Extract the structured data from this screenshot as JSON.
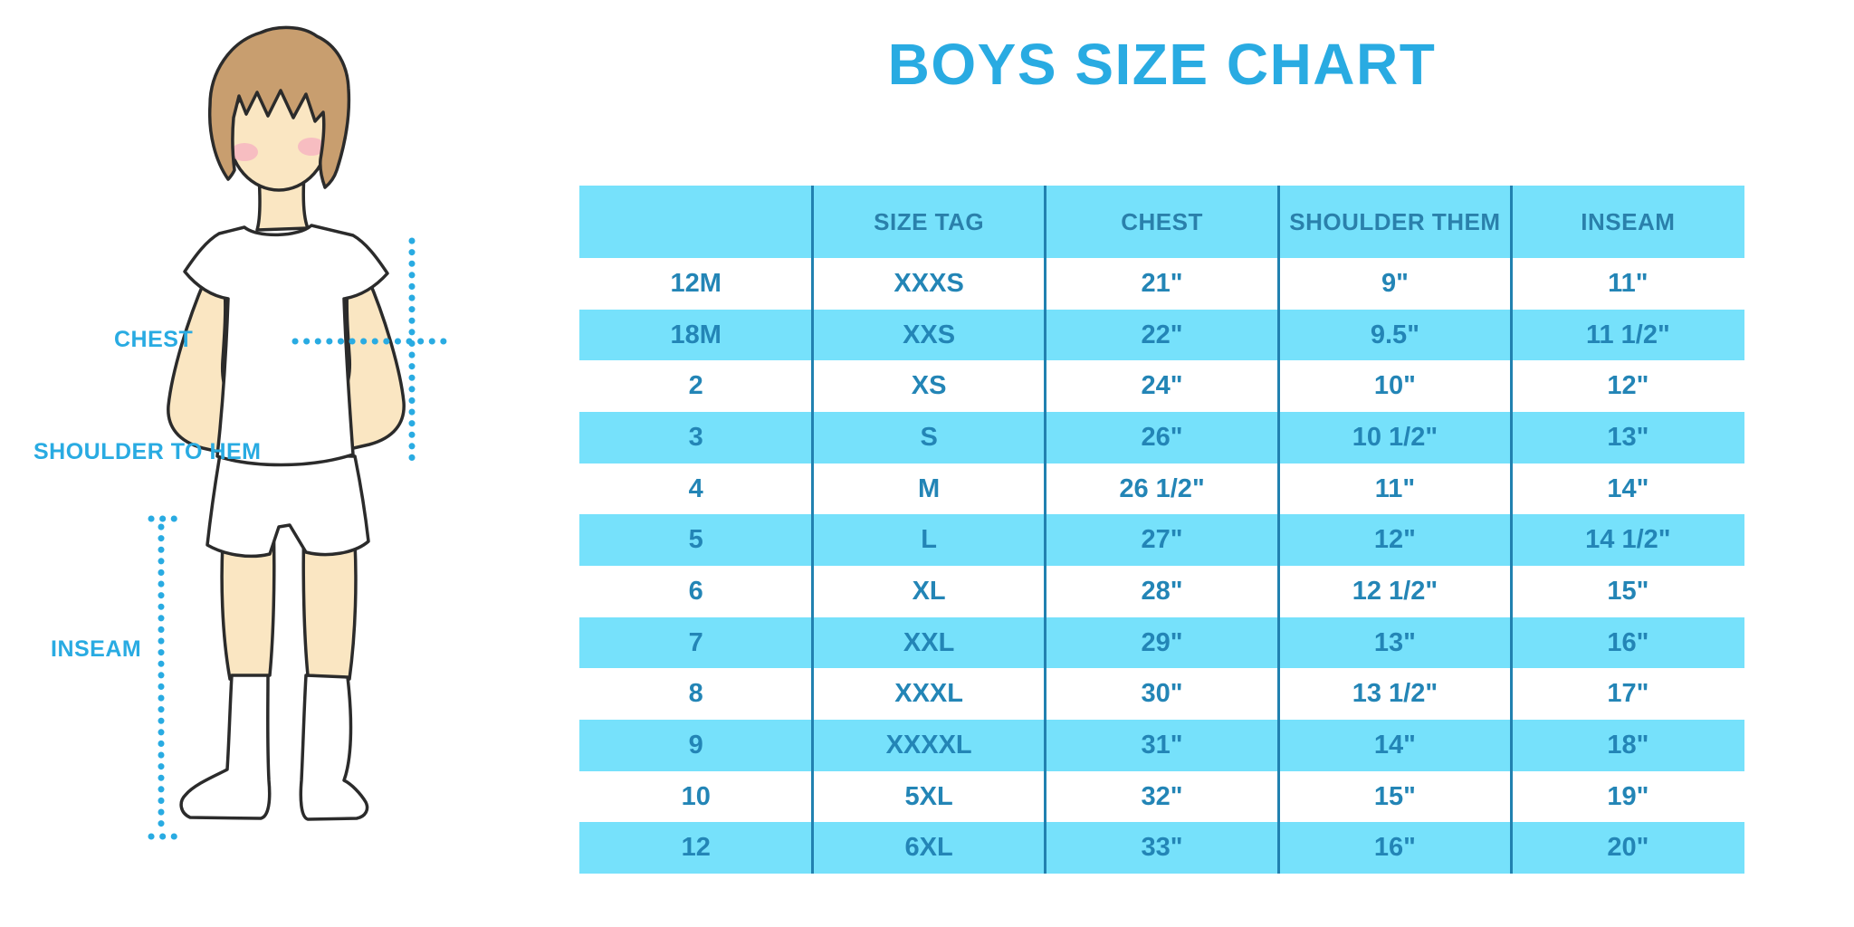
{
  "title": "BOYS SIZE CHART",
  "diagram": {
    "labels": {
      "chest": "CHEST",
      "shoulder_to_hem": "SHOULDER TO HEM",
      "inseam": "INSEAM"
    }
  },
  "chart_data": {
    "type": "table",
    "title": "BOYS SIZE CHART",
    "columns": [
      "",
      "SIZE TAG",
      "CHEST",
      "SHOULDER THEM",
      "INSEAM"
    ],
    "rows": [
      [
        "12M",
        "XXXS",
        "21\"",
        "9\"",
        "11\""
      ],
      [
        "18M",
        "XXS",
        "22\"",
        "9.5\"",
        "11 1/2\""
      ],
      [
        "2",
        "XS",
        "24\"",
        "10\"",
        "12\""
      ],
      [
        "3",
        "S",
        "26\"",
        "10 1/2\"",
        "13\""
      ],
      [
        "4",
        "M",
        "26 1/2\"",
        "11\"",
        "14\""
      ],
      [
        "5",
        "L",
        "27\"",
        "12\"",
        "14 1/2\""
      ],
      [
        "6",
        "XL",
        "28\"",
        "12 1/2\"",
        "15\""
      ],
      [
        "7",
        "XXL",
        "29\"",
        "13\"",
        "16\""
      ],
      [
        "8",
        "XXXL",
        "30\"",
        "13 1/2\"",
        "17\""
      ],
      [
        "9",
        "XXXXL",
        "31\"",
        "14\"",
        "18\""
      ],
      [
        "10",
        "5XL",
        "32\"",
        "15\"",
        "19\""
      ],
      [
        "12",
        "6XL",
        "33\"",
        "16\"",
        "20\""
      ]
    ],
    "layout": {
      "row_striping": "alternating white / cyan starting white",
      "legend": "none",
      "grid": "vertical column separators only"
    }
  },
  "colors": {
    "accent_blue": "#29ABE2",
    "row_cyan": "#76E1FB",
    "table_text": "#2385B6",
    "header_text": "#2A80AB",
    "column_line": "#2181B0",
    "skin": "#FAE6C2",
    "hair": "#C89E6F",
    "blush": "#F5AFC0",
    "outline": "#2B2B2B"
  }
}
